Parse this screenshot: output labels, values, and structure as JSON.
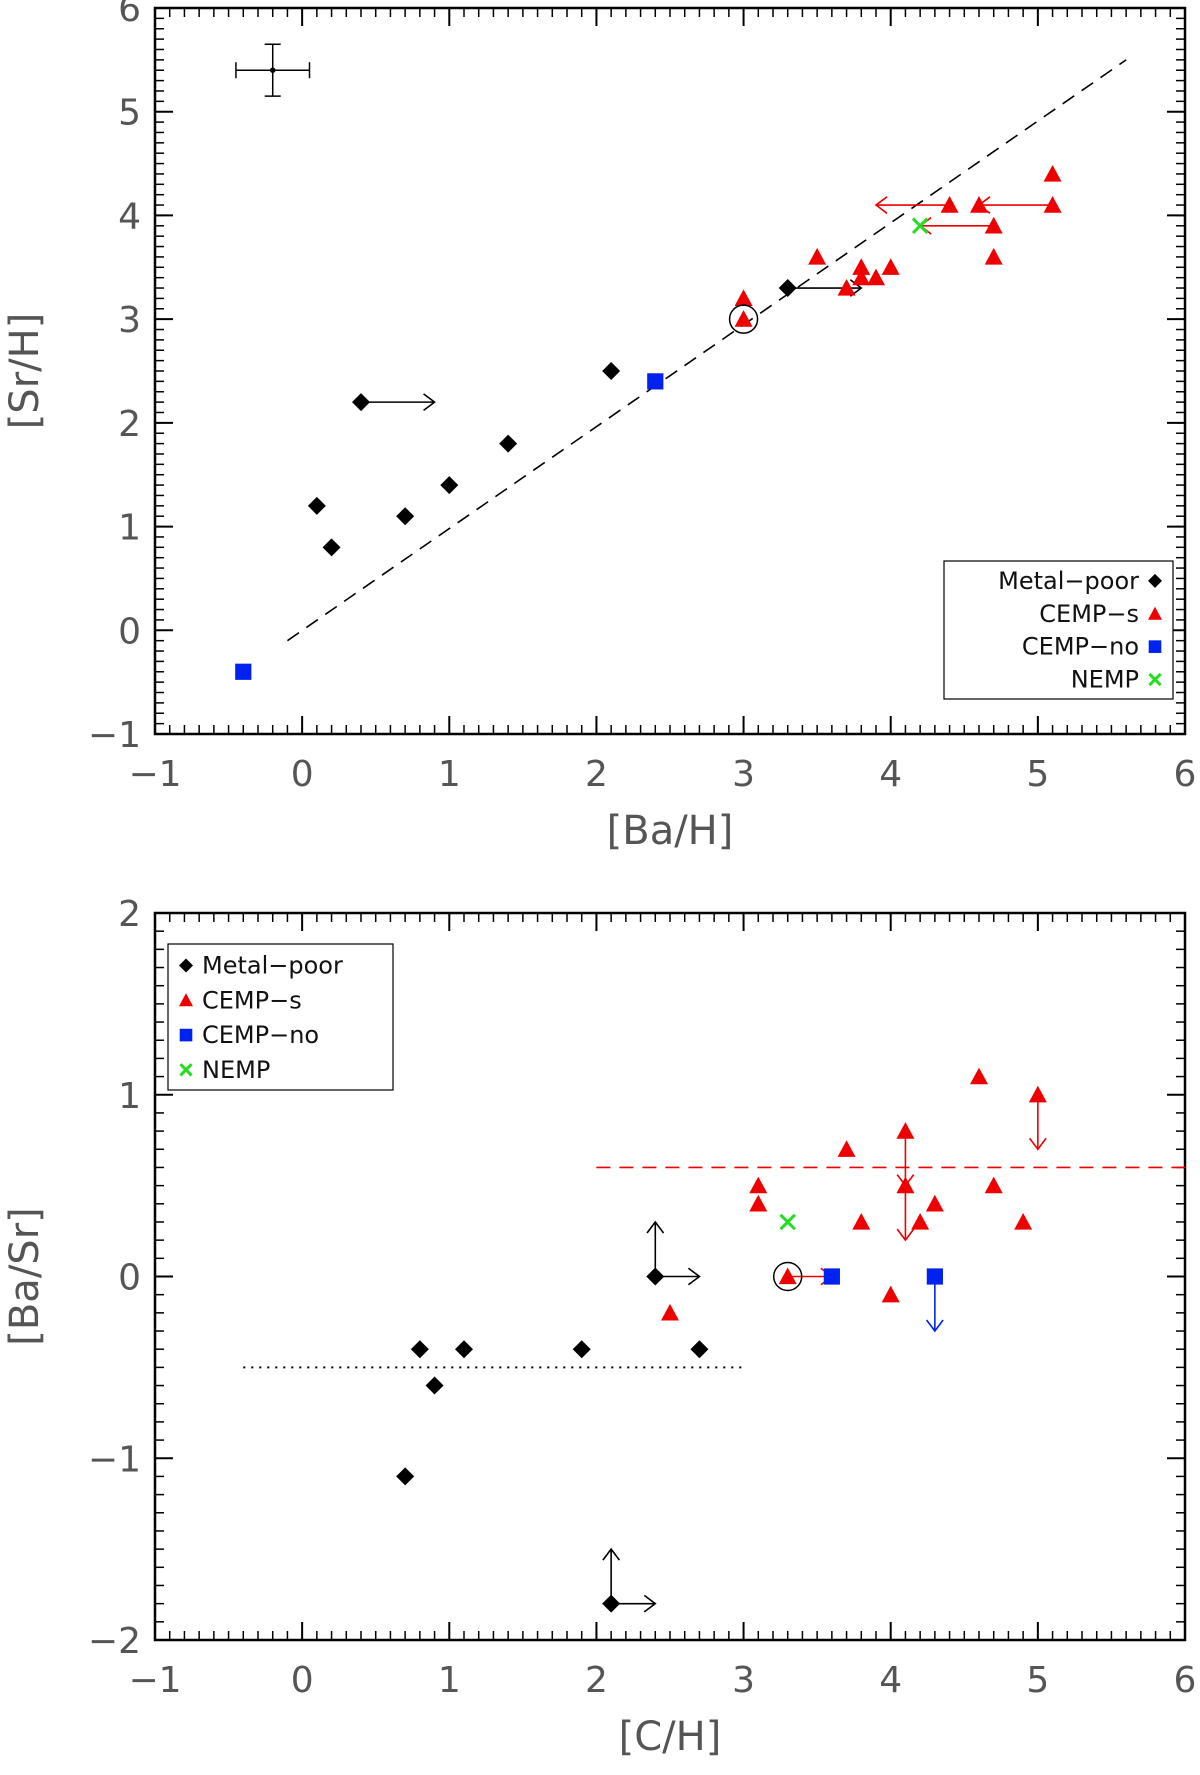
{
  "colors": {
    "metal_poor": "#000000",
    "cemp_s": "#ee0000",
    "cemp_no": "#0022ee",
    "nemp": "#22dd22",
    "axis": "#000000",
    "text": "#555555"
  },
  "chart_data": [
    {
      "type": "scatter",
      "xlabel": "[Ba/H]",
      "ylabel": "[Sr/H]",
      "xlim": [
        -1,
        6
      ],
      "ylim": [
        -1,
        6
      ],
      "xticks": [
        -1,
        0,
        1,
        2,
        3,
        4,
        5,
        6
      ],
      "yticks": [
        -1,
        0,
        1,
        2,
        3,
        4,
        5,
        6
      ],
      "xtick_labels": [
        "−1",
        "0",
        "1",
        "2",
        "3",
        "4",
        "5",
        "6"
      ],
      "ytick_labels": [
        "−1",
        "0",
        "1",
        "2",
        "3",
        "4",
        "5",
        "6"
      ],
      "legend": {
        "position": "bottom-right",
        "align": "right",
        "entries": [
          {
            "label": "Metal−poor",
            "series": "metal_poor"
          },
          {
            "label": "CEMP−s",
            "series": "cemp_s"
          },
          {
            "label": "CEMP−no",
            "series": "cemp_no"
          },
          {
            "label": "NEMP",
            "series": "nemp"
          }
        ]
      },
      "series": [
        {
          "name": "Metal-poor",
          "key": "metal_poor",
          "marker": "diamond",
          "points": [
            [
              0.1,
              1.2
            ],
            [
              0.2,
              0.8
            ],
            [
              0.4,
              2.2
            ],
            [
              0.7,
              1.1
            ],
            [
              1.0,
              1.4
            ],
            [
              1.4,
              1.8
            ],
            [
              2.1,
              2.5
            ],
            [
              3.3,
              3.3
            ]
          ]
        },
        {
          "name": "CEMP-s",
          "key": "cemp_s",
          "marker": "triangle",
          "points": [
            [
              3.0,
              3.2
            ],
            [
              3.0,
              3.0
            ],
            [
              3.5,
              3.6
            ],
            [
              3.7,
              3.3
            ],
            [
              3.8,
              3.5
            ],
            [
              3.8,
              3.4
            ],
            [
              3.9,
              3.4
            ],
            [
              4.0,
              3.5
            ],
            [
              4.4,
              4.1
            ],
            [
              4.6,
              4.1
            ],
            [
              4.7,
              3.9
            ],
            [
              4.7,
              3.6
            ],
            [
              5.1,
              4.4
            ],
            [
              5.1,
              4.1
            ]
          ]
        },
        {
          "name": "CEMP-no",
          "key": "cemp_no",
          "marker": "square",
          "points": [
            [
              -0.4,
              -0.4
            ],
            [
              2.4,
              2.4
            ]
          ]
        },
        {
          "name": "NEMP",
          "key": "nemp",
          "marker": "x",
          "points": [
            [
              4.2,
              3.9
            ]
          ]
        }
      ],
      "limits": [
        {
          "x": 0.4,
          "y": 2.2,
          "dir": "right",
          "length": 0.5,
          "series": "metal_poor"
        },
        {
          "x": 3.3,
          "y": 3.3,
          "dir": "right",
          "length": 0.5,
          "series": "metal_poor"
        },
        {
          "x": 4.4,
          "y": 4.1,
          "dir": "left",
          "length": 0.5,
          "series": "cemp_s"
        },
        {
          "x": 4.7,
          "y": 3.9,
          "dir": "left",
          "length": 0.5,
          "series": "cemp_s"
        },
        {
          "x": 5.1,
          "y": 4.1,
          "dir": "left",
          "length": 0.5,
          "series": "cemp_s"
        }
      ],
      "circled": [
        [
          3.0,
          3.0
        ]
      ],
      "lines": [
        {
          "style": "dashed",
          "color": "axis",
          "from": [
            -0.1,
            -0.1
          ],
          "to": [
            5.6,
            5.5
          ]
        }
      ],
      "error_bar": {
        "x": -0.2,
        "y": 5.4,
        "xerr": 0.25,
        "yerr": 0.25
      }
    },
    {
      "type": "scatter",
      "xlabel": "[C/H]",
      "ylabel": "[Ba/Sr]",
      "xlim": [
        -1,
        6
      ],
      "ylim": [
        -2,
        2
      ],
      "xticks": [
        -1,
        0,
        1,
        2,
        3,
        4,
        5,
        6
      ],
      "yticks": [
        -2,
        -1,
        0,
        1,
        2
      ],
      "xtick_labels": [
        "−1",
        "0",
        "1",
        "2",
        "3",
        "4",
        "5",
        "6"
      ],
      "ytick_labels": [
        "−2",
        "−1",
        "0",
        "1",
        "2"
      ],
      "legend": {
        "position": "top-left",
        "align": "left",
        "entries": [
          {
            "label": "Metal−poor",
            "series": "metal_poor"
          },
          {
            "label": "CEMP−s",
            "series": "cemp_s"
          },
          {
            "label": "CEMP−no",
            "series": "cemp_no"
          },
          {
            "label": "NEMP",
            "series": "nemp"
          }
        ]
      },
      "series": [
        {
          "name": "Metal-poor",
          "key": "metal_poor",
          "marker": "diamond",
          "points": [
            [
              0.7,
              -1.1
            ],
            [
              0.8,
              -0.4
            ],
            [
              0.9,
              -0.6
            ],
            [
              1.1,
              -0.4
            ],
            [
              1.9,
              -0.4
            ],
            [
              2.1,
              -1.8
            ],
            [
              2.4,
              0.0
            ],
            [
              2.7,
              -0.4
            ]
          ]
        },
        {
          "name": "CEMP-s",
          "key": "cemp_s",
          "marker": "triangle",
          "points": [
            [
              2.5,
              -0.2
            ],
            [
              3.1,
              0.5
            ],
            [
              3.1,
              0.4
            ],
            [
              3.3,
              0.0
            ],
            [
              3.7,
              0.7
            ],
            [
              3.8,
              0.3
            ],
            [
              4.0,
              -0.1
            ],
            [
              4.1,
              0.8
            ],
            [
              4.1,
              0.5
            ],
            [
              4.2,
              0.3
            ],
            [
              4.3,
              0.4
            ],
            [
              4.6,
              1.1
            ],
            [
              4.7,
              0.5
            ],
            [
              4.9,
              0.3
            ],
            [
              5.0,
              1.0
            ]
          ]
        },
        {
          "name": "CEMP-no",
          "key": "cemp_no",
          "marker": "square",
          "points": [
            [
              3.6,
              0.0
            ],
            [
              4.3,
              0.0
            ]
          ]
        },
        {
          "name": "NEMP",
          "key": "nemp",
          "marker": "x",
          "points": [
            [
              3.3,
              0.3
            ]
          ]
        }
      ],
      "limits": [
        {
          "x": 2.4,
          "y": 0.0,
          "dir": "up",
          "length": 0.3,
          "series": "metal_poor"
        },
        {
          "x": 2.4,
          "y": 0.0,
          "dir": "right",
          "length": 0.3,
          "series": "metal_poor"
        },
        {
          "x": 2.1,
          "y": -1.8,
          "dir": "up",
          "length": 0.3,
          "series": "metal_poor"
        },
        {
          "x": 2.1,
          "y": -1.8,
          "dir": "right",
          "length": 0.3,
          "series": "metal_poor"
        },
        {
          "x": 3.3,
          "y": 0.0,
          "dir": "right",
          "length": 0.3,
          "series": "cemp_s"
        },
        {
          "x": 4.1,
          "y": 0.8,
          "dir": "down",
          "length": 0.3,
          "series": "cemp_s"
        },
        {
          "x": 4.1,
          "y": 0.5,
          "dir": "down",
          "length": 0.3,
          "series": "cemp_s"
        },
        {
          "x": 5.0,
          "y": 1.0,
          "dir": "down",
          "length": 0.3,
          "series": "cemp_s"
        },
        {
          "x": 4.3,
          "y": 0.0,
          "dir": "down",
          "length": 0.3,
          "series": "cemp_no"
        }
      ],
      "circled": [
        [
          3.3,
          0.0
        ]
      ],
      "lines": [
        {
          "style": "dashed",
          "color": "cemp_s",
          "from": [
            2.0,
            0.6
          ],
          "to": [
            6.0,
            0.6
          ]
        },
        {
          "style": "dotted",
          "color": "axis",
          "from": [
            -0.4,
            -0.5
          ],
          "to": [
            3.0,
            -0.5
          ]
        }
      ]
    }
  ]
}
